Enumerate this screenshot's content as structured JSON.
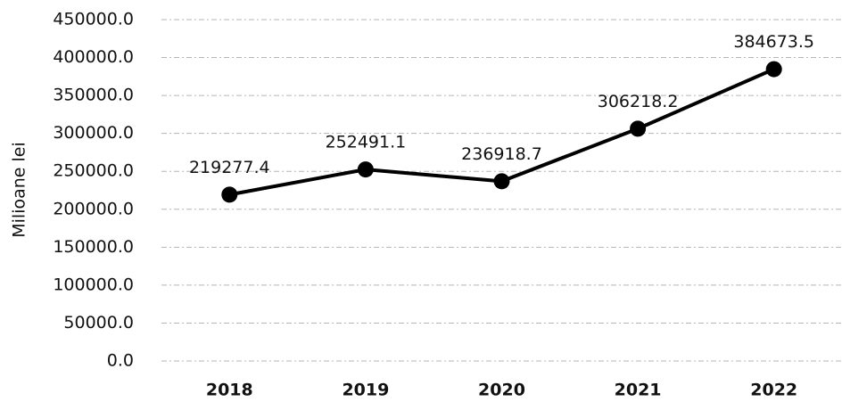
{
  "chart_data": {
    "type": "line",
    "ylabel": "Milioane lei",
    "categories": [
      "2018",
      "2019",
      "2020",
      "2021",
      "2022"
    ],
    "series": [
      {
        "name": "Milioane lei",
        "color": "#000000",
        "values": [
          219277.4,
          252491.1,
          236918.7,
          306218.2,
          384673.5
        ]
      }
    ],
    "ylim": [
      0,
      450000
    ],
    "yticks": [
      {
        "value": 0,
        "label": "0.0"
      },
      {
        "value": 50000,
        "label": "50000.0"
      },
      {
        "value": 100000,
        "label": "100000.0"
      },
      {
        "value": 150000,
        "label": "150000.0"
      },
      {
        "value": 200000,
        "label": "200000.0"
      },
      {
        "value": 250000,
        "label": "250000.0"
      },
      {
        "value": 300000,
        "label": "300000.0"
      },
      {
        "value": 350000,
        "label": "350000.0"
      },
      {
        "value": 400000,
        "label": "400000.0"
      },
      {
        "value": 450000,
        "label": "450000.0"
      }
    ],
    "grid": true
  }
}
